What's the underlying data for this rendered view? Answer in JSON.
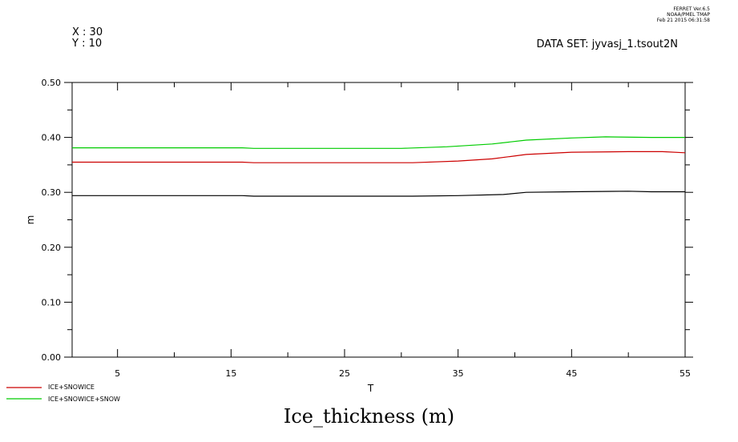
{
  "header": {
    "stamp": [
      "FERRET  Ver.6.5",
      "NOAA/PMEL TMAP",
      "Feb 21 2015 06:31:58"
    ],
    "coord_x": "X : 30",
    "coord_y": "Y : 10",
    "dataset": "DATA SET: jyvasj_1.tsout2N"
  },
  "chart_data": {
    "type": "line",
    "title": "Ice_thickness (m)",
    "xlabel": "T",
    "ylabel": "m",
    "xlim": [
      1,
      55
    ],
    "ylim": [
      0.0,
      0.5
    ],
    "x_ticks": [
      5,
      15,
      25,
      35,
      45,
      55
    ],
    "x_tick_labels": [
      "5",
      "15",
      "25",
      "35",
      "45",
      "55"
    ],
    "y_ticks": [
      0.0,
      0.1,
      0.2,
      0.3,
      0.4,
      0.5
    ],
    "y_tick_labels": [
      "0.00",
      "0.10",
      "0.20",
      "0.30",
      "0.40",
      "0.50"
    ],
    "grid": false,
    "legend_position": "bottom-left",
    "series": [
      {
        "name": "",
        "color": "#000000",
        "x": [
          1,
          16,
          17,
          31,
          35,
          39,
          41,
          45,
          50,
          52,
          55
        ],
        "values": [
          0.294,
          0.294,
          0.293,
          0.293,
          0.294,
          0.296,
          0.3,
          0.301,
          0.302,
          0.301,
          0.301
        ]
      },
      {
        "name": "ICE+SNOWICE",
        "color": "#cc0000",
        "x": [
          1,
          16,
          17,
          31,
          35,
          38,
          41,
          45,
          50,
          53,
          55
        ],
        "values": [
          0.355,
          0.355,
          0.354,
          0.354,
          0.357,
          0.361,
          0.369,
          0.373,
          0.374,
          0.374,
          0.372
        ]
      },
      {
        "name": "ICE+SNOWICE+SNOW",
        "color": "#00cc00",
        "x": [
          1,
          16,
          17,
          30,
          34,
          38,
          41,
          45,
          48,
          52,
          55
        ],
        "values": [
          0.381,
          0.381,
          0.38,
          0.38,
          0.383,
          0.388,
          0.395,
          0.399,
          0.401,
          0.4,
          0.4
        ]
      }
    ]
  }
}
